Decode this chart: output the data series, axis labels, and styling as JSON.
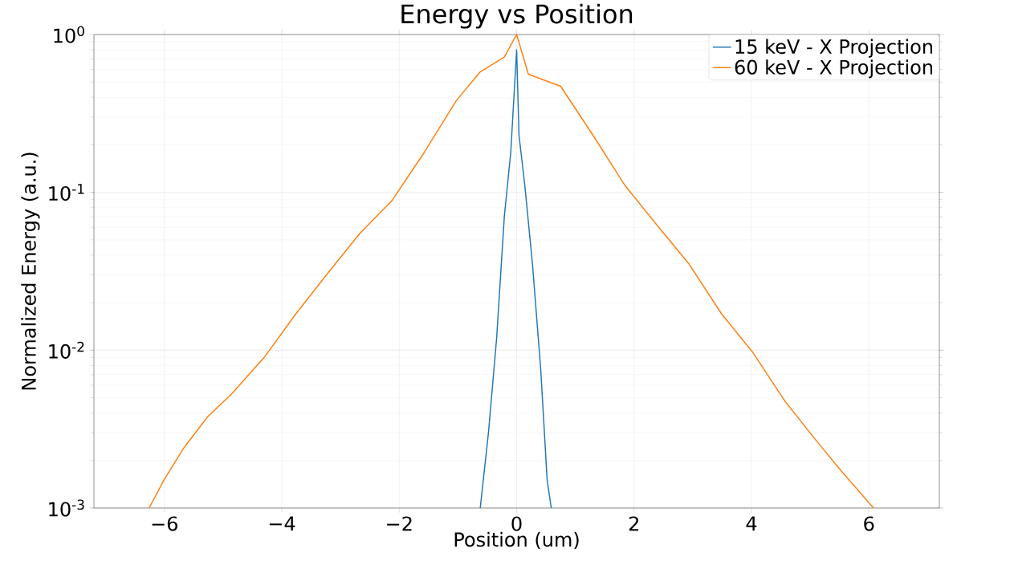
{
  "chart_data": {
    "type": "line",
    "title": "Energy vs Position",
    "xlabel": "Position (um)",
    "ylabel": "Normalized Energy (a.u.)",
    "log": "y",
    "grid": true,
    "legend": "top right",
    "xlim": [
      -7.2,
      7.2
    ],
    "ylim": [
      0.001,
      1
    ],
    "xticks": [
      {
        "value": -6,
        "label": "−6"
      },
      {
        "value": -4,
        "label": "−4"
      },
      {
        "value": -2,
        "label": "−2"
      },
      0,
      2,
      4,
      6
    ],
    "yticks": [
      {
        "value": 0.001,
        "label": "10$^{-3}$"
      },
      {
        "value": 0.01,
        "label": "10$^{-2}$"
      },
      {
        "value": 0.1,
        "label": "10$^{-1}$"
      },
      {
        "value": 1,
        "label": "10$^{0}$"
      }
    ],
    "series": [
      {
        "name": "15 keV  - X Projection",
        "color": "#1f77b4",
        "x": [
          -0.62,
          -0.48,
          -0.34,
          -0.21,
          -0.1,
          0,
          0.04,
          0.14,
          0.27,
          0.41,
          0.52,
          0.59
        ],
        "values": [
          0.001,
          0.003,
          0.012,
          0.07,
          0.18,
          0.8,
          0.23,
          0.11,
          0.035,
          0.0076,
          0.0015,
          0.001
        ]
      },
      {
        "name": "60 keV  - X Projection",
        "color": "#ff7f0e",
        "x": [
          -6.26,
          -6.01,
          -5.67,
          -5.26,
          -4.85,
          -4.3,
          -3.76,
          -3.21,
          -2.67,
          -2.12,
          -1.57,
          -1.03,
          -0.62,
          -0.21,
          0,
          0.2,
          0.75,
          1.3,
          1.85,
          2.39,
          2.94,
          3.49,
          4.03,
          4.58,
          5.13,
          5.54,
          6.08
        ],
        "values": [
          0.001,
          0.0015,
          0.0024,
          0.0038,
          0.0053,
          0.009,
          0.017,
          0.031,
          0.055,
          0.089,
          0.18,
          0.38,
          0.58,
          0.72,
          1.0,
          0.56,
          0.47,
          0.23,
          0.11,
          0.062,
          0.035,
          0.017,
          0.0096,
          0.0047,
          0.0026,
          0.0017,
          0.001
        ]
      }
    ]
  }
}
